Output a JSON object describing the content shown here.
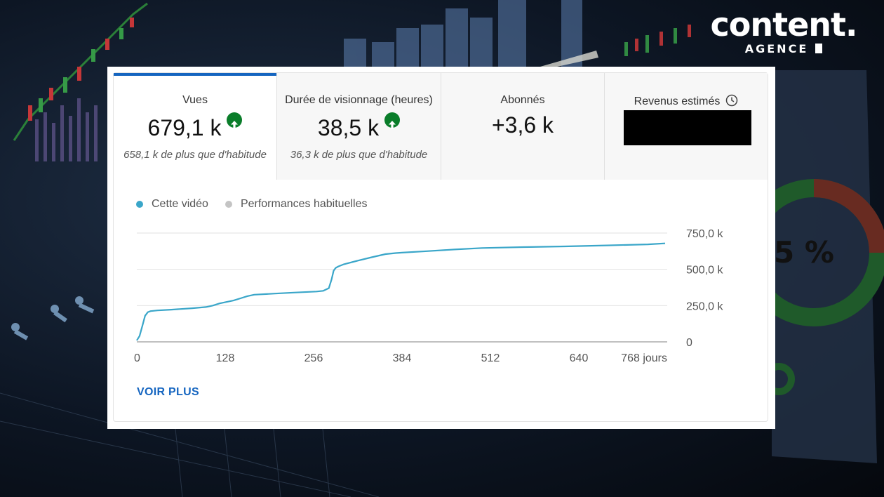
{
  "brand": {
    "word": "content.",
    "sub": "AGENCE"
  },
  "background_text": {
    "percent": "5 %"
  },
  "tabs": [
    {
      "title": "Vues",
      "value": "679,1 k",
      "trend": "up",
      "sub": "658,1 k de plus que d'habitude",
      "active": true
    },
    {
      "title": "Durée de visionnage (heures)",
      "value": "38,5 k",
      "trend": "up",
      "sub": "36,3 k de plus que d'habitude",
      "active": false
    },
    {
      "title": "Abonnés",
      "value": "+3,6 k",
      "trend": "none",
      "sub": "",
      "active": false
    },
    {
      "title": "Revenus estimés",
      "value": "",
      "trend": "none",
      "sub": "",
      "active": false,
      "redacted": true,
      "icon": "clock-icon"
    }
  ],
  "legend": [
    {
      "label": "Cette vidéo",
      "color": "#3aa6c9"
    },
    {
      "label": "Performances habituelles",
      "color": "#c4c4c4"
    }
  ],
  "chart_data": {
    "type": "line",
    "xlim": [
      0,
      768
    ],
    "ylim": [
      0,
      750000
    ],
    "x_ticks": [
      "0",
      "128",
      "256",
      "384",
      "512",
      "640",
      "768 jours"
    ],
    "x_tick_values": [
      0,
      128,
      256,
      384,
      512,
      640,
      768
    ],
    "y_ticks": [
      "0",
      "250,0 k",
      "500,0 k",
      "750,0 k"
    ],
    "y_tick_values": [
      0,
      250000,
      500000,
      750000
    ],
    "grid": true,
    "legend_position": "top-left",
    "series": [
      {
        "name": "Cette vidéo",
        "color": "#3aa6c9",
        "x": [
          0,
          4,
          8,
          12,
          16,
          20,
          30,
          50,
          80,
          100,
          110,
          120,
          140,
          150,
          160,
          170,
          200,
          230,
          260,
          270,
          278,
          282,
          285,
          288,
          292,
          300,
          320,
          340,
          360,
          375,
          384,
          420,
          460,
          500,
          560,
          620,
          680,
          740,
          765
        ],
        "y": [
          10000,
          40000,
          110000,
          180000,
          205000,
          212000,
          217000,
          222000,
          232000,
          240000,
          250000,
          265000,
          285000,
          300000,
          315000,
          325000,
          333000,
          340000,
          347000,
          352000,
          370000,
          430000,
          490000,
          510000,
          520000,
          535000,
          560000,
          583000,
          605000,
          612000,
          615000,
          625000,
          637000,
          647000,
          653000,
          658000,
          665000,
          672000,
          679100
        ]
      }
    ]
  },
  "actions": {
    "voir_plus": "VOIR PLUS"
  }
}
